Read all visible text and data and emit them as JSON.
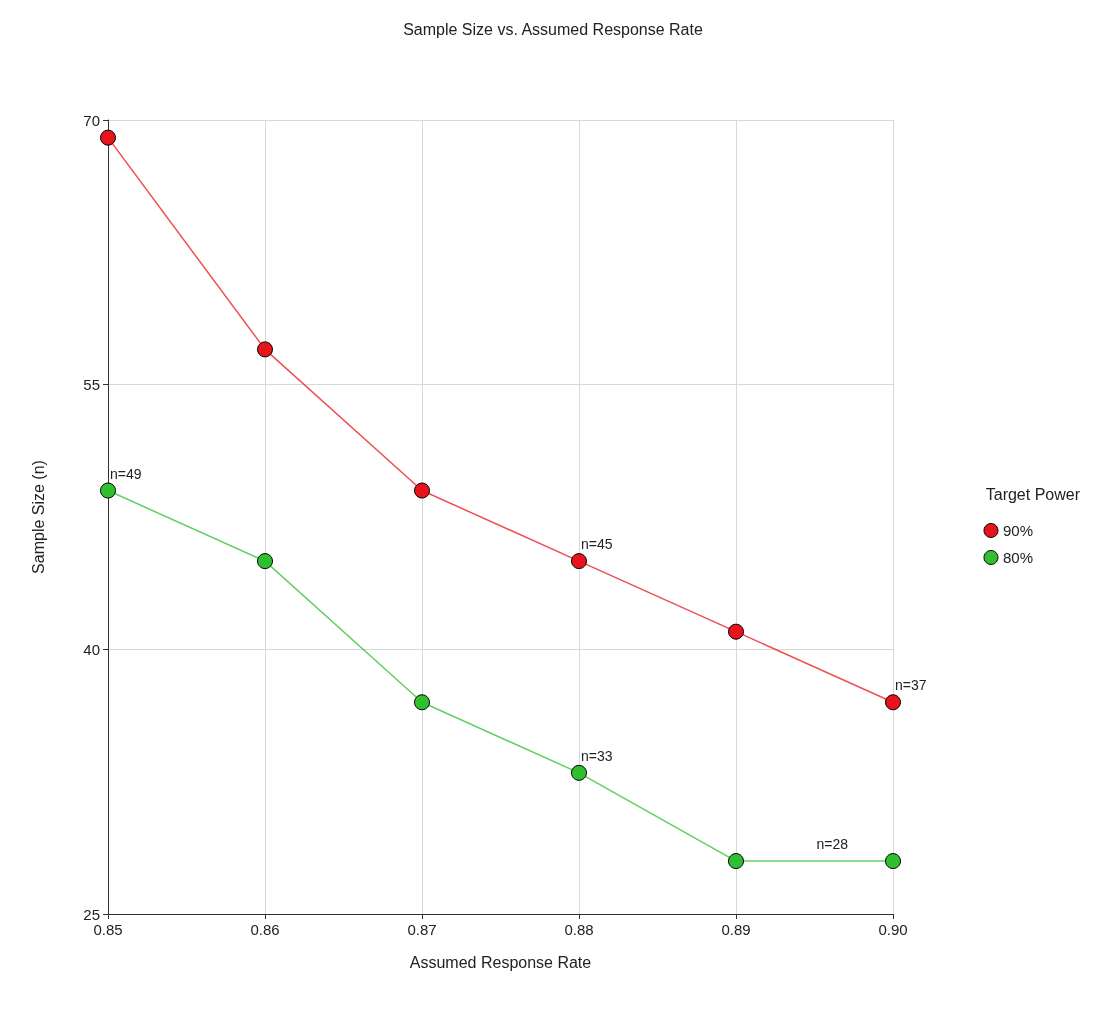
{
  "chart_data": {
    "type": "line",
    "title": "Sample Size vs. Assumed Response Rate",
    "xlabel": "Assumed Response Rate",
    "ylabel": "Sample Size (n)",
    "legend_title": "Target Power",
    "x": [
      0.85,
      0.86,
      0.87,
      0.88,
      0.89,
      0.9
    ],
    "series": [
      {
        "name": "90%",
        "color": "#e8141b",
        "values": [
          69,
          57,
          49,
          45,
          41,
          37
        ]
      },
      {
        "name": "80%",
        "color": "#2fbf2f",
        "values": [
          49,
          45,
          37,
          33,
          28,
          28
        ]
      }
    ],
    "xlim": [
      0.85,
      0.9
    ],
    "xticks": [
      0.85,
      0.86,
      0.87,
      0.88,
      0.89,
      {
        "value": 0.9,
        "label": "0.90"
      }
    ],
    "ylim": [
      25,
      70
    ],
    "yticks": [
      25,
      40,
      55,
      70
    ],
    "annotations": [
      {
        "text": "n=49",
        "x": 0.85,
        "y": 49
      },
      {
        "text": "n=45",
        "x": 0.88,
        "y": 45
      },
      {
        "text": "n=37",
        "x": 0.9,
        "y": 37
      },
      {
        "text": "n=33",
        "x": 0.88,
        "y": 33
      },
      {
        "text": "n=28",
        "x": 0.895,
        "y": 28
      }
    ],
    "grid": true,
    "legend": "right",
    "marker": "circle",
    "line_style": "solid"
  }
}
